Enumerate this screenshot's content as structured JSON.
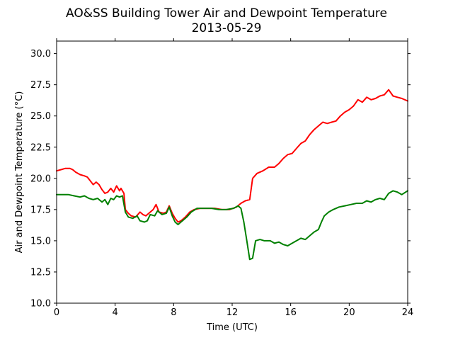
{
  "chart_data": {
    "type": "line",
    "title": "AO&SS Building Tower Air and Dewpoint Temperature",
    "subtitle": "2013-05-29",
    "xlabel": "Time (UTC)",
    "ylabel": "Air and Dewpoint Temperature (°C)",
    "xlim": [
      0,
      24
    ],
    "ylim": [
      10,
      31
    ],
    "x_ticks": [
      0,
      4,
      8,
      12,
      16,
      20,
      24
    ],
    "y_ticks": [
      10.0,
      12.5,
      15.0,
      17.5,
      20.0,
      22.5,
      25.0,
      27.5,
      30.0
    ],
    "x_tick_labels": [
      "0",
      "4",
      "8",
      "12",
      "16",
      "20",
      "24"
    ],
    "y_tick_labels": [
      "10.0",
      "12.5",
      "15.0",
      "17.5",
      "20.0",
      "22.5",
      "25.0",
      "27.5",
      "30.0"
    ],
    "grid": false,
    "series": [
      {
        "color": "#ff0000",
        "points": [
          [
            0.0,
            20.6
          ],
          [
            0.3,
            20.7
          ],
          [
            0.6,
            20.8
          ],
          [
            0.9,
            20.8
          ],
          [
            1.1,
            20.7
          ],
          [
            1.3,
            20.5
          ],
          [
            1.6,
            20.3
          ],
          [
            1.9,
            20.2
          ],
          [
            2.1,
            20.1
          ],
          [
            2.3,
            19.8
          ],
          [
            2.5,
            19.5
          ],
          [
            2.7,
            19.7
          ],
          [
            2.9,
            19.5
          ],
          [
            3.1,
            19.1
          ],
          [
            3.3,
            18.8
          ],
          [
            3.5,
            18.9
          ],
          [
            3.7,
            19.2
          ],
          [
            3.9,
            18.9
          ],
          [
            4.1,
            19.4
          ],
          [
            4.3,
            19.0
          ],
          [
            4.4,
            19.2
          ],
          [
            4.6,
            18.8
          ],
          [
            4.7,
            17.5
          ],
          [
            4.9,
            17.2
          ],
          [
            5.1,
            17.0
          ],
          [
            5.4,
            16.9
          ],
          [
            5.7,
            17.3
          ],
          [
            5.9,
            17.1
          ],
          [
            6.1,
            17.0
          ],
          [
            6.4,
            17.3
          ],
          [
            6.6,
            17.5
          ],
          [
            6.8,
            17.9
          ],
          [
            7.0,
            17.3
          ],
          [
            7.3,
            17.2
          ],
          [
            7.5,
            17.3
          ],
          [
            7.7,
            17.8
          ],
          [
            7.9,
            17.2
          ],
          [
            8.1,
            16.8
          ],
          [
            8.3,
            16.5
          ],
          [
            8.5,
            16.6
          ],
          [
            8.8,
            16.9
          ],
          [
            9.1,
            17.3
          ],
          [
            9.4,
            17.5
          ],
          [
            9.8,
            17.6
          ],
          [
            10.3,
            17.6
          ],
          [
            10.8,
            17.6
          ],
          [
            11.3,
            17.5
          ],
          [
            11.8,
            17.5
          ],
          [
            12.3,
            17.7
          ],
          [
            12.6,
            18.0
          ],
          [
            12.9,
            18.2
          ],
          [
            13.2,
            18.3
          ],
          [
            13.4,
            20.0
          ],
          [
            13.7,
            20.4
          ],
          [
            14.1,
            20.6
          ],
          [
            14.5,
            20.9
          ],
          [
            14.9,
            20.9
          ],
          [
            15.2,
            21.2
          ],
          [
            15.5,
            21.6
          ],
          [
            15.8,
            21.9
          ],
          [
            16.1,
            22.0
          ],
          [
            16.4,
            22.4
          ],
          [
            16.7,
            22.8
          ],
          [
            17.0,
            23.0
          ],
          [
            17.3,
            23.5
          ],
          [
            17.6,
            23.9
          ],
          [
            17.9,
            24.2
          ],
          [
            18.2,
            24.5
          ],
          [
            18.5,
            24.4
          ],
          [
            18.8,
            24.5
          ],
          [
            19.1,
            24.6
          ],
          [
            19.4,
            25.0
          ],
          [
            19.7,
            25.3
          ],
          [
            20.0,
            25.5
          ],
          [
            20.3,
            25.8
          ],
          [
            20.6,
            26.3
          ],
          [
            20.9,
            26.1
          ],
          [
            21.2,
            26.5
          ],
          [
            21.5,
            26.3
          ],
          [
            21.8,
            26.4
          ],
          [
            22.1,
            26.6
          ],
          [
            22.4,
            26.7
          ],
          [
            22.7,
            27.1
          ],
          [
            23.0,
            26.6
          ],
          [
            23.3,
            26.5
          ],
          [
            23.6,
            26.4
          ],
          [
            24.0,
            26.2
          ]
        ]
      },
      {
        "color": "#008000",
        "points": [
          [
            0.0,
            18.7
          ],
          [
            0.4,
            18.7
          ],
          [
            0.8,
            18.7
          ],
          [
            1.2,
            18.6
          ],
          [
            1.6,
            18.5
          ],
          [
            1.9,
            18.6
          ],
          [
            2.2,
            18.4
          ],
          [
            2.5,
            18.3
          ],
          [
            2.8,
            18.4
          ],
          [
            3.1,
            18.1
          ],
          [
            3.3,
            18.3
          ],
          [
            3.5,
            17.9
          ],
          [
            3.7,
            18.4
          ],
          [
            3.9,
            18.3
          ],
          [
            4.1,
            18.6
          ],
          [
            4.3,
            18.5
          ],
          [
            4.5,
            18.6
          ],
          [
            4.7,
            17.3
          ],
          [
            4.9,
            16.9
          ],
          [
            5.2,
            16.8
          ],
          [
            5.5,
            17.0
          ],
          [
            5.7,
            16.6
          ],
          [
            6.0,
            16.5
          ],
          [
            6.2,
            16.6
          ],
          [
            6.4,
            17.1
          ],
          [
            6.7,
            17.0
          ],
          [
            6.9,
            17.4
          ],
          [
            7.2,
            17.1
          ],
          [
            7.5,
            17.2
          ],
          [
            7.7,
            17.7
          ],
          [
            7.9,
            17.0
          ],
          [
            8.1,
            16.5
          ],
          [
            8.3,
            16.3
          ],
          [
            8.6,
            16.6
          ],
          [
            8.9,
            16.9
          ],
          [
            9.2,
            17.3
          ],
          [
            9.6,
            17.6
          ],
          [
            10.1,
            17.6
          ],
          [
            10.6,
            17.6
          ],
          [
            11.1,
            17.5
          ],
          [
            11.6,
            17.5
          ],
          [
            12.1,
            17.6
          ],
          [
            12.4,
            17.8
          ],
          [
            12.6,
            17.6
          ],
          [
            12.8,
            16.5
          ],
          [
            13.0,
            15.0
          ],
          [
            13.2,
            13.5
          ],
          [
            13.4,
            13.6
          ],
          [
            13.6,
            15.0
          ],
          [
            13.9,
            15.1
          ],
          [
            14.2,
            15.0
          ],
          [
            14.6,
            15.0
          ],
          [
            14.9,
            14.8
          ],
          [
            15.2,
            14.9
          ],
          [
            15.5,
            14.7
          ],
          [
            15.8,
            14.6
          ],
          [
            16.1,
            14.8
          ],
          [
            16.4,
            15.0
          ],
          [
            16.7,
            15.2
          ],
          [
            17.0,
            15.1
          ],
          [
            17.3,
            15.4
          ],
          [
            17.6,
            15.7
          ],
          [
            17.9,
            15.9
          ],
          [
            18.1,
            16.5
          ],
          [
            18.3,
            17.0
          ],
          [
            18.6,
            17.3
          ],
          [
            18.9,
            17.5
          ],
          [
            19.3,
            17.7
          ],
          [
            19.7,
            17.8
          ],
          [
            20.1,
            17.9
          ],
          [
            20.5,
            18.0
          ],
          [
            20.9,
            18.0
          ],
          [
            21.2,
            18.2
          ],
          [
            21.5,
            18.1
          ],
          [
            21.8,
            18.3
          ],
          [
            22.1,
            18.4
          ],
          [
            22.4,
            18.3
          ],
          [
            22.7,
            18.8
          ],
          [
            23.0,
            19.0
          ],
          [
            23.3,
            18.9
          ],
          [
            23.6,
            18.7
          ],
          [
            24.0,
            19.0
          ]
        ]
      }
    ]
  }
}
